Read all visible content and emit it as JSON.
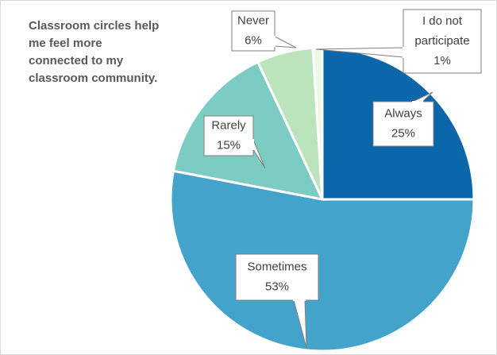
{
  "chart_data": {
    "type": "pie",
    "title": "Classroom circles help me feel more connected to my classroom community.",
    "categories": [
      "Always",
      "Sometimes",
      "Rarely",
      "Never",
      "I do not participate"
    ],
    "values": [
      25,
      53,
      15,
      6,
      1
    ],
    "value_labels": [
      "25%",
      "53%",
      "15%",
      "6%",
      "1%"
    ],
    "colors": [
      "#0b67a9",
      "#43a3cb",
      "#7dccc4",
      "#bbe4bd",
      "#eef8e6"
    ]
  }
}
